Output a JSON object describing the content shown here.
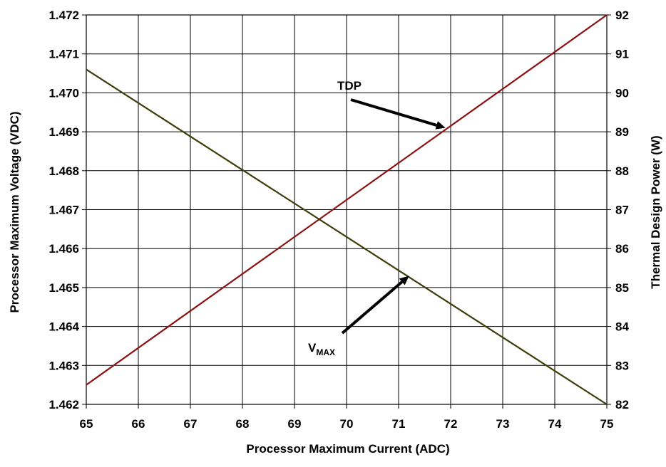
{
  "chart_data": {
    "type": "line",
    "xlabel": "Processor Maximum Current (ADC)",
    "ylabel_left": "Processor Maximum Voltage (VDC)",
    "ylabel_right": "Thermal Design Power (W)",
    "xlim": [
      65,
      75
    ],
    "ylim_left": [
      1.462,
      1.472
    ],
    "ylim_right": [
      82,
      92
    ],
    "x_ticks": [
      "65",
      "66",
      "67",
      "68",
      "69",
      "70",
      "71",
      "72",
      "73",
      "74",
      "75"
    ],
    "y_left_ticks": [
      "1.462",
      "1.463",
      "1.464",
      "1.465",
      "1.466",
      "1.467",
      "1.468",
      "1.469",
      "1.470",
      "1.471",
      "1.472"
    ],
    "y_right_ticks": [
      "82",
      "83",
      "84",
      "85",
      "86",
      "87",
      "88",
      "89",
      "90",
      "91",
      "92"
    ],
    "grid": true,
    "series": [
      {
        "name": "TDP",
        "axis": "right",
        "color": "#8B1010",
        "x": [
          65,
          75
        ],
        "values": [
          82.5,
          92.0
        ]
      },
      {
        "name": "VMAX",
        "axis": "left",
        "color": "#3C3C0A",
        "x": [
          65,
          75
        ],
        "values": [
          1.4706,
          1.462
        ]
      }
    ],
    "annotations": {
      "tdp": {
        "text": "TDP",
        "points_to": [
          71.9,
          89.1
        ]
      },
      "vmax": {
        "text": "V",
        "subscript": "MAX",
        "points_to": [
          71.2,
          1.4653
        ]
      }
    }
  }
}
